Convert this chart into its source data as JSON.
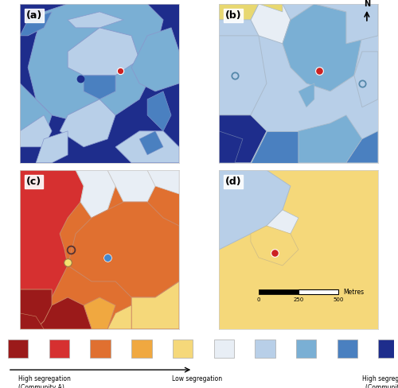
{
  "panel_labels": [
    "(a)",
    "(b)",
    "(c)",
    "(d)"
  ],
  "colors_warm": [
    "#9b1a1a",
    "#d63030",
    "#e07030",
    "#f0a840",
    "#f5d87a"
  ],
  "colors_cool": [
    "#e8eef5",
    "#b8cfe8",
    "#7aafd4",
    "#4a80c0",
    "#1e2d8c"
  ],
  "legend_colors": [
    "#9b1a1a",
    "#d63030",
    "#e07030",
    "#f0a840",
    "#f5d87a",
    "#e8eef5",
    "#b8cfe8",
    "#7aafd4",
    "#4a80c0",
    "#1e2d8c"
  ],
  "scale_bar_label": "Metres",
  "scale_bar_ticks": [
    "0",
    "250",
    "500"
  ],
  "legend_high_a": "High segregation\n(Community A)",
  "legend_low": "Low segregation",
  "legend_high_b": "High segregation\n(Community B)"
}
